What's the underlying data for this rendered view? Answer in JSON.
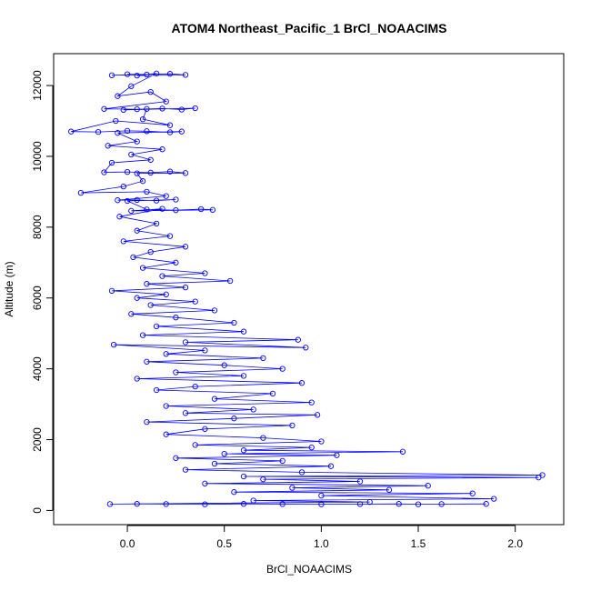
{
  "chart_data": {
    "type": "scatter",
    "title": "ATOM4 Northeast_Pacific_1 BrCl_NOAACIMS",
    "xlabel": "BrCl_NOAACIMS",
    "ylabel": "Altitude (m)",
    "xlim": [
      -0.38,
      2.25
    ],
    "ylim": [
      -400,
      12900
    ],
    "xticks": [
      0.0,
      0.5,
      1.0,
      1.5,
      2.0
    ],
    "xtick_labels": [
      "0.0",
      "0.5",
      "1.0",
      "1.5",
      "2.0"
    ],
    "yticks": [
      0,
      2000,
      4000,
      6000,
      8000,
      10000,
      12000
    ],
    "ytick_labels": [
      "0",
      "2000",
      "4000",
      "6000",
      "8000",
      "10000",
      "12000"
    ],
    "grid": false,
    "series": [
      {
        "color": "#0000ff",
        "marker": "open-circle",
        "connected": true,
        "points": [
          [
            0.0,
            12320
          ],
          [
            0.1,
            12310
          ],
          [
            -0.08,
            12290
          ],
          [
            0.22,
            12330
          ],
          [
            0.3,
            12300
          ],
          [
            0.05,
            12280
          ],
          [
            0.15,
            12340
          ],
          [
            0.02,
            11980
          ],
          [
            -0.05,
            11700
          ],
          [
            0.12,
            11820
          ],
          [
            0.2,
            11550
          ],
          [
            -0.12,
            11340
          ],
          [
            0.05,
            11330
          ],
          [
            0.18,
            11350
          ],
          [
            0.28,
            11320
          ],
          [
            0.35,
            11360
          ],
          [
            -0.02,
            11310
          ],
          [
            0.1,
            11340
          ],
          [
            0.08,
            11050
          ],
          [
            0.22,
            10880
          ],
          [
            -0.06,
            11000
          ],
          [
            -0.29,
            10700
          ],
          [
            -0.15,
            10690
          ],
          [
            0.0,
            10720
          ],
          [
            0.1,
            10710
          ],
          [
            0.22,
            10680
          ],
          [
            0.28,
            10700
          ],
          [
            -0.05,
            10660
          ],
          [
            0.05,
            10420
          ],
          [
            -0.1,
            10300
          ],
          [
            0.18,
            10200
          ],
          [
            0.02,
            10050
          ],
          [
            0.12,
            9900
          ],
          [
            -0.08,
            9820
          ],
          [
            -0.12,
            9550
          ],
          [
            0.0,
            9560
          ],
          [
            0.12,
            9540
          ],
          [
            0.22,
            9570
          ],
          [
            0.3,
            9530
          ],
          [
            0.05,
            9520
          ],
          [
            0.08,
            9300
          ],
          [
            -0.02,
            9150
          ],
          [
            -0.24,
            8970
          ],
          [
            0.1,
            9000
          ],
          [
            0.2,
            8880
          ],
          [
            -0.05,
            8760
          ],
          [
            0.05,
            8770
          ],
          [
            0.15,
            8750
          ],
          [
            0.25,
            8780
          ],
          [
            0.0,
            8740
          ],
          [
            0.1,
            8500
          ],
          [
            0.25,
            8480
          ],
          [
            0.38,
            8510
          ],
          [
            0.44,
            8490
          ],
          [
            0.02,
            8460
          ],
          [
            0.18,
            8520
          ],
          [
            -0.04,
            8300
          ],
          [
            0.15,
            8100
          ],
          [
            0.05,
            7900
          ],
          [
            0.22,
            7750
          ],
          [
            -0.02,
            7600
          ],
          [
            0.3,
            7450
          ],
          [
            0.12,
            7300
          ],
          [
            0.03,
            7150
          ],
          [
            0.25,
            7000
          ],
          [
            0.08,
            6850
          ],
          [
            0.4,
            6700
          ],
          [
            0.18,
            6620
          ],
          [
            0.53,
            6480
          ],
          [
            0.1,
            6400
          ],
          [
            0.3,
            6300
          ],
          [
            -0.08,
            6200
          ],
          [
            0.2,
            6100
          ],
          [
            0.05,
            6000
          ],
          [
            0.35,
            5900
          ],
          [
            0.12,
            5800
          ],
          [
            0.45,
            5650
          ],
          [
            0.02,
            5550
          ],
          [
            0.25,
            5450
          ],
          [
            0.55,
            5300
          ],
          [
            0.15,
            5200
          ],
          [
            0.6,
            5050
          ],
          [
            0.08,
            4950
          ],
          [
            0.88,
            4820
          ],
          [
            0.3,
            4750
          ],
          [
            0.92,
            4600
          ],
          [
            -0.07,
            4680
          ],
          [
            0.4,
            4520
          ],
          [
            0.2,
            4420
          ],
          [
            0.7,
            4300
          ],
          [
            0.1,
            4200
          ],
          [
            0.5,
            4100
          ],
          [
            0.8,
            4000
          ],
          [
            0.25,
            3900
          ],
          [
            0.6,
            3800
          ],
          [
            0.05,
            3720
          ],
          [
            0.9,
            3600
          ],
          [
            0.35,
            3500
          ],
          [
            0.15,
            3400
          ],
          [
            0.75,
            3300
          ],
          [
            0.45,
            3150
          ],
          [
            0.95,
            3050
          ],
          [
            0.2,
            2950
          ],
          [
            0.65,
            2850
          ],
          [
            0.3,
            2750
          ],
          [
            0.98,
            2700
          ],
          [
            0.55,
            2600
          ],
          [
            0.1,
            2500
          ],
          [
            0.85,
            2400
          ],
          [
            0.4,
            2300
          ],
          [
            0.2,
            2150
          ],
          [
            0.7,
            2050
          ],
          [
            1.0,
            1950
          ],
          [
            0.35,
            1850
          ],
          [
            0.95,
            1780
          ],
          [
            0.6,
            1700
          ],
          [
            1.42,
            1660
          ],
          [
            0.5,
            1600
          ],
          [
            1.08,
            1560
          ],
          [
            0.25,
            1480
          ],
          [
            0.8,
            1400
          ],
          [
            0.45,
            1320
          ],
          [
            1.05,
            1250
          ],
          [
            0.3,
            1150
          ],
          [
            0.9,
            1080
          ],
          [
            2.14,
            1000
          ],
          [
            0.6,
            960
          ],
          [
            2.12,
            930
          ],
          [
            0.7,
            880
          ],
          [
            1.2,
            820
          ],
          [
            0.4,
            760
          ],
          [
            1.55,
            700
          ],
          [
            0.85,
            640
          ],
          [
            1.35,
            580
          ],
          [
            0.55,
            520
          ],
          [
            1.78,
            480
          ],
          [
            1.0,
            420
          ],
          [
            1.89,
            330
          ],
          [
            0.65,
            280
          ],
          [
            1.25,
            240
          ],
          [
            -0.09,
            180
          ],
          [
            0.05,
            185
          ],
          [
            0.2,
            180
          ],
          [
            0.4,
            175
          ],
          [
            0.6,
            185
          ],
          [
            0.8,
            180
          ],
          [
            1.0,
            175
          ],
          [
            1.2,
            180
          ],
          [
            1.4,
            185
          ],
          [
            1.5,
            175
          ],
          [
            1.62,
            180
          ],
          [
            1.85,
            185
          ]
        ]
      }
    ]
  }
}
